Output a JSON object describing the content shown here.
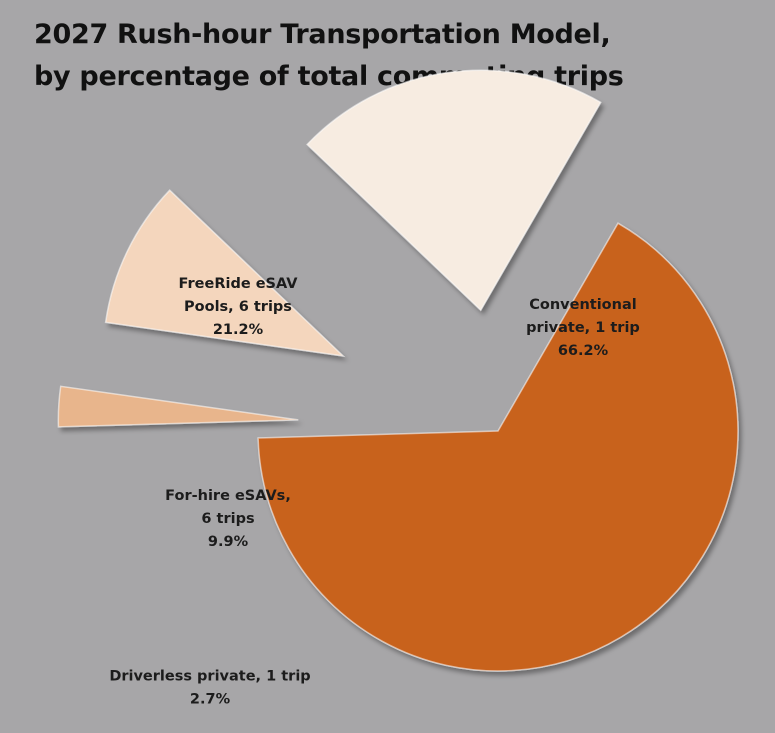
{
  "title": {
    "line1": "2027 Rush-hour Transportation Model,",
    "line2": "by percentage of total commuting trips"
  },
  "chart_data": {
    "type": "pie",
    "style": "exploded-3d",
    "slices": [
      {
        "name": "Conventional private, 1 trip",
        "value": 66.2,
        "label_lines": [
          "Conventional",
          "private, 1 trip",
          "66.2%"
        ],
        "color": "#c8621f"
      },
      {
        "name": "Driverless private, 1 trip",
        "value": 2.7,
        "label_lines": [
          "Driverless private, 1 trip",
          "2.7%"
        ],
        "color": "#e8b58c"
      },
      {
        "name": "For-hire eSAVs, 6 trips",
        "value": 9.9,
        "label_lines": [
          "For-hire eSAVs,",
          "6 trips",
          "9.9%"
        ],
        "color": "#f4d6bd"
      },
      {
        "name": "FreeRide eSAV Pools, 6 trips",
        "value": 21.2,
        "label_lines": [
          "FreeRide eSAV",
          "Pools, 6 trips",
          "21.2%"
        ],
        "color": "#f7ece1"
      }
    ]
  }
}
